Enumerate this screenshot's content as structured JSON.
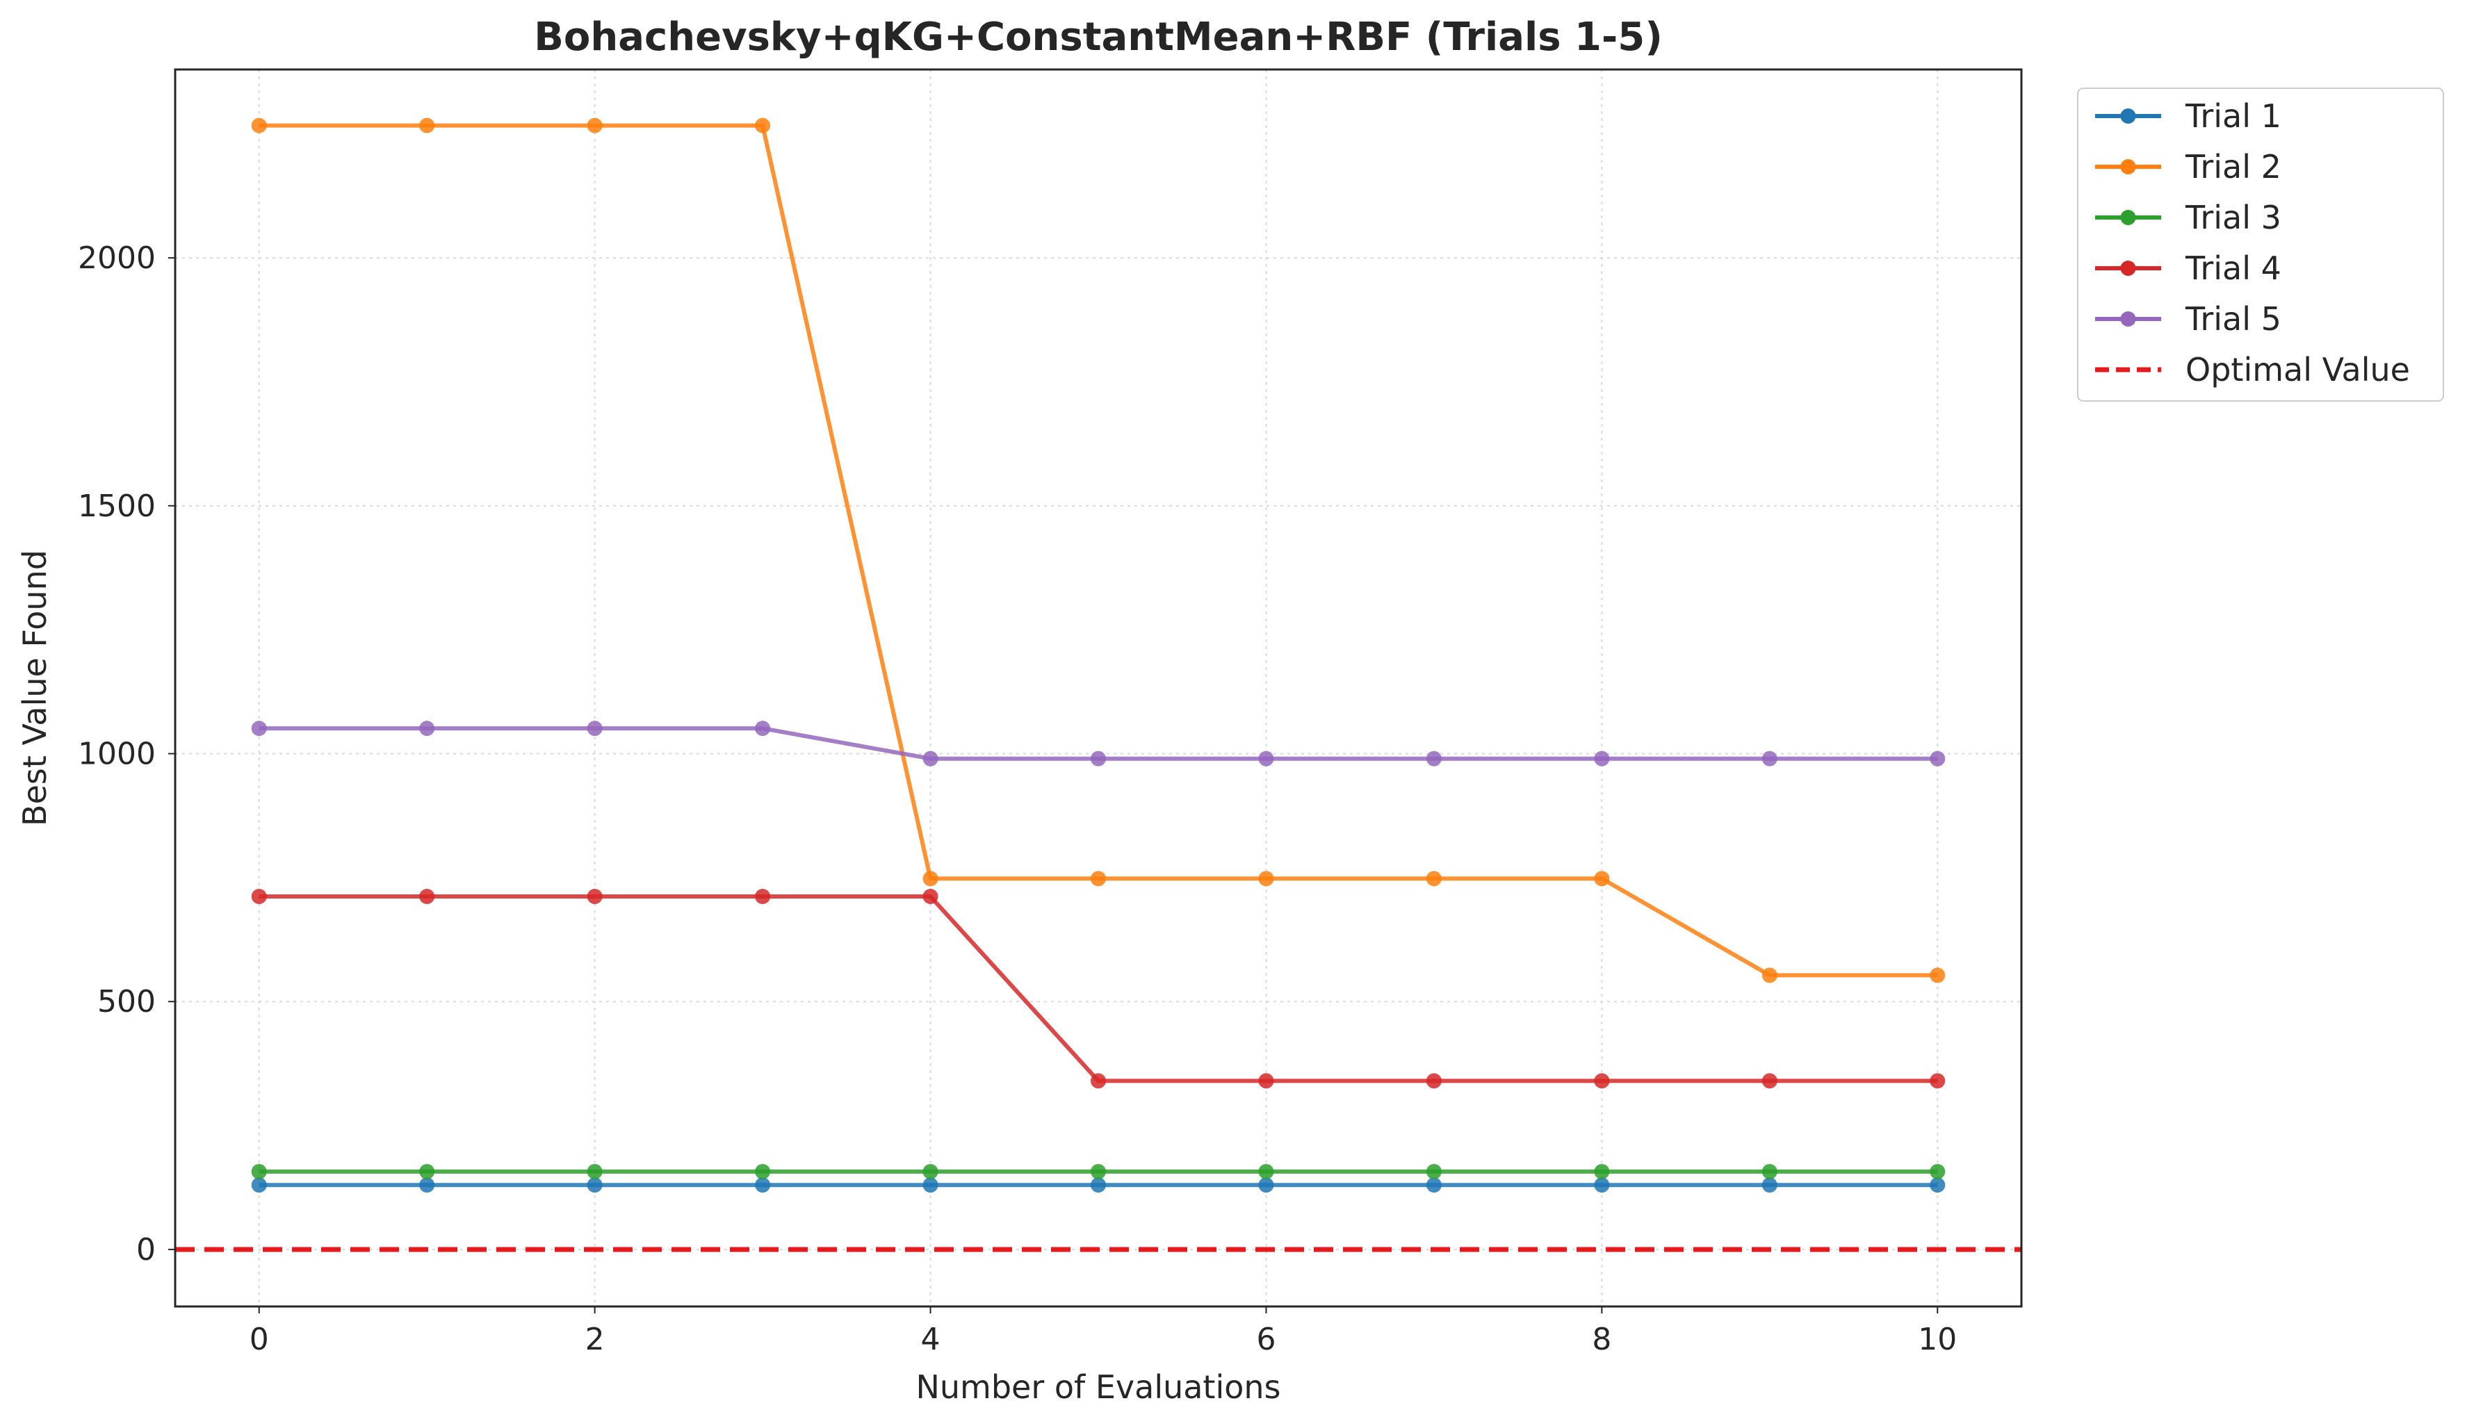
{
  "chart_data": {
    "type": "line",
    "title": "Bohachevsky+qKG+ConstantMean+RBF (Trials 1-5)",
    "xlabel": "Number of Evaluations",
    "ylabel": "Best Value Found",
    "xlim": [
      -0.5,
      10.5
    ],
    "ylim": [
      -115,
      2380
    ],
    "xticks": [
      0,
      2,
      4,
      6,
      8,
      10
    ],
    "yticks": [
      0,
      500,
      1000,
      1500,
      2000
    ],
    "grid": true,
    "legend_position": "outside-top-right",
    "x": [
      0,
      1,
      2,
      3,
      4,
      5,
      6,
      7,
      8,
      9,
      10
    ],
    "series": [
      {
        "name": "Trial 1",
        "color": "#1f77b4",
        "values": [
          130,
          130,
          130,
          130,
          130,
          130,
          130,
          130,
          130,
          130,
          130
        ]
      },
      {
        "name": "Trial 2",
        "color": "#ff7f0e",
        "values": [
          2267,
          2267,
          2267,
          2267,
          748,
          748,
          748,
          748,
          748,
          553,
          553
        ]
      },
      {
        "name": "Trial 3",
        "color": "#2ca02c",
        "values": [
          157,
          157,
          157,
          157,
          157,
          157,
          157,
          157,
          157,
          157,
          157
        ]
      },
      {
        "name": "Trial 4",
        "color": "#d62728",
        "values": [
          712,
          712,
          712,
          712,
          712,
          340,
          340,
          340,
          340,
          340,
          340
        ]
      },
      {
        "name": "Trial 5",
        "color": "#9467bd",
        "values": [
          1051,
          1051,
          1051,
          1051,
          990,
          990,
          990,
          990,
          990,
          990,
          990
        ]
      }
    ],
    "reference_line": {
      "name": "Optimal Value",
      "value": 0,
      "color": "#e41a1c",
      "style": "dashed"
    }
  }
}
